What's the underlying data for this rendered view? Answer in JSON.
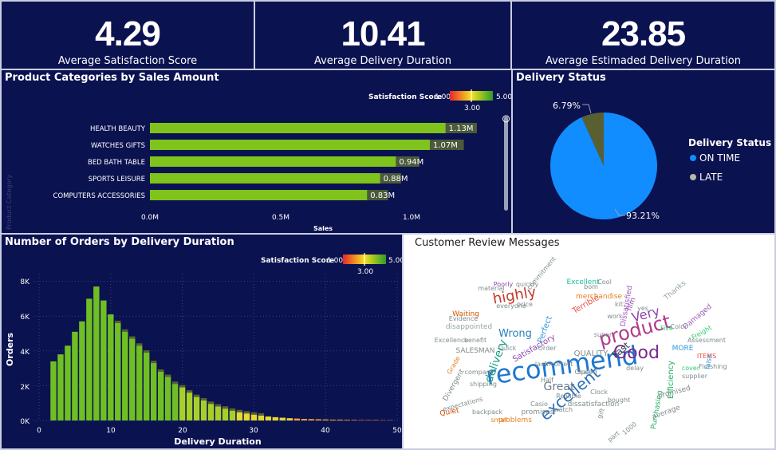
{
  "kpis": [
    {
      "value": "4.29",
      "label": "Average Satisfaction Score"
    },
    {
      "value": "10.41",
      "label": "Average Delivery Duration"
    },
    {
      "value": "23.85",
      "label": "Average Estimaded Delivery Duration"
    }
  ],
  "categories_chart": {
    "title": "Product Categories by Sales Amount",
    "legend_title": "Satisfaction Score",
    "legend_min": "1.00",
    "legend_mid": "3.00",
    "legend_max": "5.00",
    "y_axis_label": "Product Category",
    "x_axis_label": "Sales",
    "x_ticks": [
      "0.0M",
      "0.5M",
      "1.0M"
    ],
    "colors": {
      "bar": "#7fc31c",
      "shadow": "#4a5a3a"
    }
  },
  "delivery_status": {
    "title": "Delivery Status",
    "legend_title": "Delivery Status",
    "items": [
      {
        "label": "ON TIME",
        "pct_label": "93.21%",
        "color": "#118dff"
      },
      {
        "label": "LATE",
        "pct_label": "6.79%",
        "color": "#5a5f32"
      }
    ]
  },
  "orders_chart": {
    "title": "Number of Orders by Delivery Duration",
    "legend_title": "Satisfaction Score",
    "legend_min": "1.00",
    "legend_mid": "3.00",
    "legend_max": "5.00",
    "y_axis_label": "Orders",
    "x_axis_label": "Delivery Duration",
    "y_ticks": [
      "0K",
      "2K",
      "4K",
      "6K",
      "8K"
    ],
    "x_ticks": [
      "0",
      "10",
      "20",
      "30",
      "40",
      "50"
    ]
  },
  "reviews": {
    "title": "Customer Review Messages",
    "words": [
      {
        "text": "recommend",
        "color": "#1f77d0"
      },
      {
        "text": "Good",
        "color": "#7b2a8c"
      },
      {
        "text": "product",
        "color": "#b03a8a"
      },
      {
        "text": "excellent",
        "color": "#2a6fb5"
      },
      {
        "text": "highly",
        "color": "#c0392b"
      },
      {
        "text": "Very",
        "color": "#8e44ad"
      },
      {
        "text": "Great",
        "color": "#6c7a89"
      },
      {
        "text": "delivery",
        "color": "#16a085"
      },
      {
        "text": "Fast",
        "color": "#2c3e50"
      },
      {
        "text": "Wrong",
        "color": "#2980b9"
      },
      {
        "text": "QUALITY",
        "color": "#7f8c8d"
      },
      {
        "text": "Efficiency",
        "color": "#27ae60"
      },
      {
        "text": "Thanks",
        "color": "#95a5a6"
      },
      {
        "text": "Cool",
        "color": "#7f8c8d"
      },
      {
        "text": "Excellent",
        "color": "#1abc9c"
      },
      {
        "text": "Terrible",
        "color": "#e74c3c"
      },
      {
        "text": "Satisfactory",
        "color": "#8e44ad"
      },
      {
        "text": "commitment",
        "color": "#7f8c8d"
      },
      {
        "text": "disappointed",
        "color": "#95a5a6"
      },
      {
        "text": "Perfect",
        "color": "#3498db"
      },
      {
        "text": "promises",
        "color": "#7f8c8d"
      },
      {
        "text": "dissatisfaction",
        "color": "#7f8c8d"
      },
      {
        "text": "Divergent",
        "color": "#7f8c8d"
      },
      {
        "text": "Quiet",
        "color": "#d35400"
      },
      {
        "text": "SALESMAN",
        "color": "#7f8c8d"
      },
      {
        "text": "Finishing",
        "color": "#7f8c8d"
      },
      {
        "text": "Freight",
        "color": "#2ecc71"
      },
      {
        "text": "Damaged",
        "color": "#9b59b6"
      },
      {
        "text": "merchandise",
        "color": "#e67e22"
      },
      {
        "text": "Reliable",
        "color": "#7f8c8d"
      },
      {
        "text": "problems",
        "color": "#e67e22"
      },
      {
        "text": "Casio",
        "color": "#7f8c8d"
      },
      {
        "text": "supplier",
        "color": "#7f8c8d"
      },
      {
        "text": "Assessment",
        "color": "#7f8c8d"
      },
      {
        "text": "company",
        "color": "#7f8c8d"
      },
      {
        "text": "shipping",
        "color": "#7f8c8d"
      },
      {
        "text": "Waiting",
        "color": "#d35400"
      },
      {
        "text": "Poorly",
        "color": "#8e44ad"
      },
      {
        "text": "material",
        "color": "#7f8c8d"
      },
      {
        "text": "Excellence",
        "color": "#7f8c8d"
      },
      {
        "text": "incorrect",
        "color": "#7f8c8d"
      },
      {
        "text": "expectations",
        "color": "#7f8c8d"
      },
      {
        "text": "Purchasing",
        "color": "#27ae60"
      },
      {
        "text": "average",
        "color": "#7f8c8d"
      },
      {
        "text": "bought",
        "color": "#7f8c8d"
      },
      {
        "text": "everyone",
        "color": "#7f8c8d"
      },
      {
        "text": "benefit",
        "color": "#7f8c8d"
      },
      {
        "text": "Evidence",
        "color": "#7f8c8d"
      },
      {
        "text": "Speed",
        "color": "#7f8c8d"
      },
      {
        "text": "Quick",
        "color": "#7f8c8d"
      },
      {
        "text": "price",
        "color": "#7f8c8d"
      },
      {
        "text": "Color",
        "color": "#7f8c8d"
      },
      {
        "text": "promised",
        "color": "#7f8c8d"
      },
      {
        "text": "Dissatisfied",
        "color": "#9b59b6"
      },
      {
        "text": "MORE",
        "color": "#3498db"
      },
      {
        "text": "delay",
        "color": "#7f8c8d"
      },
      {
        "text": "watch",
        "color": "#7f8c8d"
      },
      {
        "text": "Clock",
        "color": "#7f8c8d"
      },
      {
        "text": "lack",
        "color": "#7f8c8d"
      },
      {
        "text": "Order",
        "color": "#7f8c8d"
      },
      {
        "text": "Chair",
        "color": "#7f8c8d"
      },
      {
        "text": "backpack",
        "color": "#7f8c8d"
      },
      {
        "text": "Grade",
        "color": "#e67e22"
      },
      {
        "text": "quickly",
        "color": "#7f8c8d"
      },
      {
        "text": "bom",
        "color": "#7f8c8d"
      },
      {
        "text": "kit",
        "color": "#7f8c8d"
      },
      {
        "text": "film",
        "color": "#8e44ad"
      },
      {
        "text": "super",
        "color": "#7f8c8d"
      },
      {
        "text": "cover",
        "color": "#2ecc71"
      },
      {
        "text": "ITEMS",
        "color": "#e74c3c"
      },
      {
        "text": "false",
        "color": "#3498db"
      },
      {
        "text": "work",
        "color": "#7f8c8d"
      },
      {
        "text": "gift",
        "color": "#7f8c8d"
      },
      {
        "text": "1000",
        "color": "#7f8c8d"
      },
      {
        "text": "part",
        "color": "#7f8c8d"
      },
      {
        "text": "small",
        "color": "#e67e22"
      },
      {
        "text": "yes",
        "color": "#7f8c8d"
      },
      {
        "text": "Five",
        "color": "#2ecc71"
      },
      {
        "text": "Half",
        "color": "#7f8c8d"
      }
    ]
  }
}
